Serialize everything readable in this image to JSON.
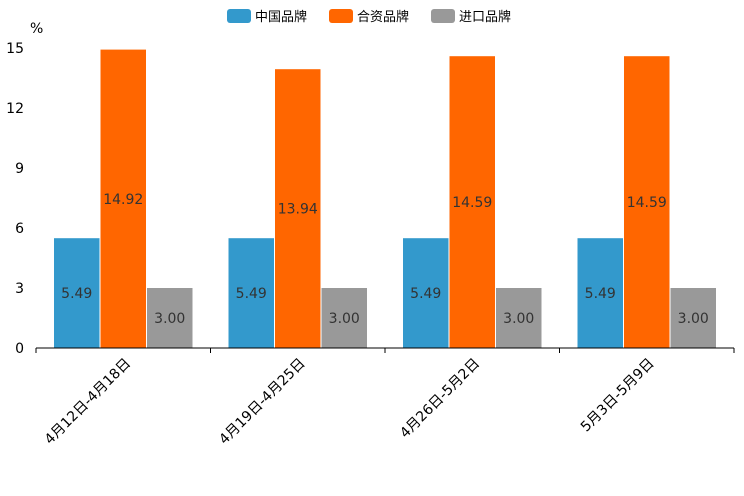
{
  "chart_data": {
    "type": "bar",
    "ylabel": "%",
    "ylim": [
      0,
      15
    ],
    "yticks": [
      0,
      3,
      6,
      9,
      12,
      15
    ],
    "categories": [
      "4月12日-4月18日",
      "4月19日-4月25日",
      "4月26日-5月2日",
      "5月3日-5月9日"
    ],
    "series": [
      {
        "name": "中国品牌",
        "color": "#3399cc",
        "values": [
          5.49,
          5.49,
          5.49,
          5.49
        ]
      },
      {
        "name": "合资品牌",
        "color": "#ff6600",
        "values": [
          14.92,
          13.94,
          14.59,
          14.59
        ]
      },
      {
        "name": "进口品牌",
        "color": "#999999",
        "values": [
          3.0,
          3.0,
          3.0,
          3.0
        ]
      }
    ],
    "value_format": "2-decimals",
    "legend_position": "top-center"
  }
}
